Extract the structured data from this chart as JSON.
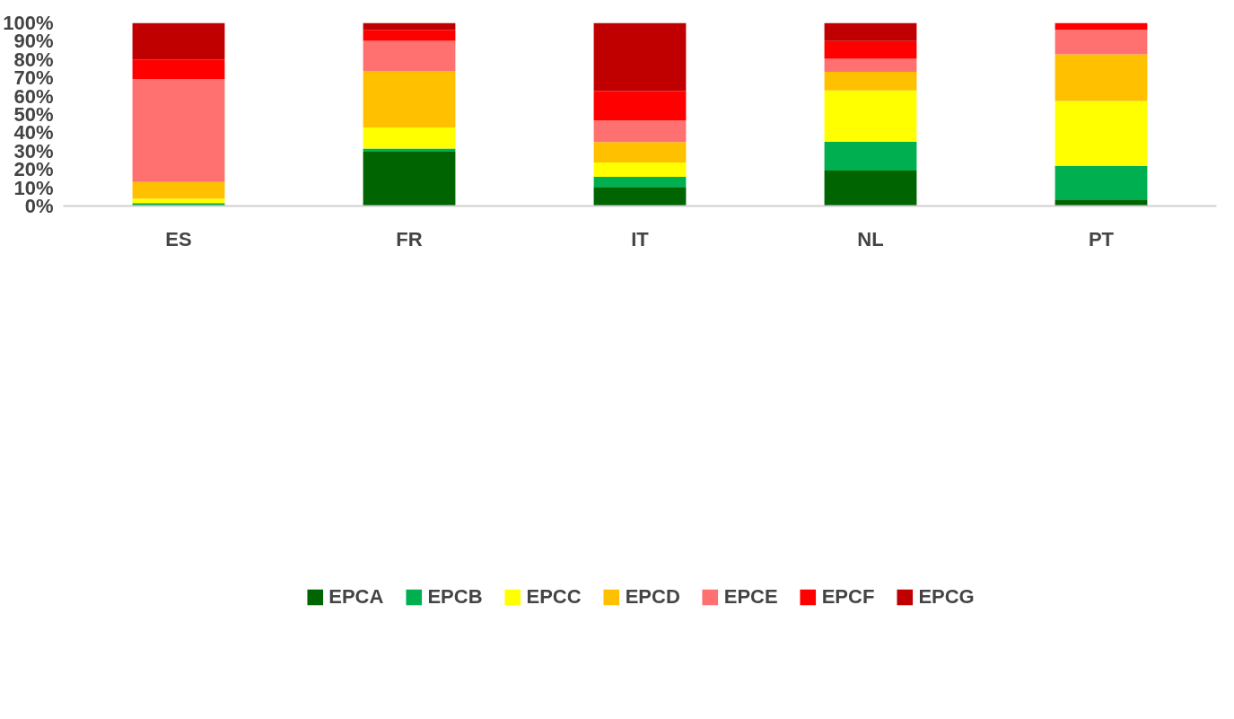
{
  "chart_data": {
    "type": "bar",
    "stacked": true,
    "categories": [
      "ES",
      "FR",
      "IT",
      "NL",
      "PT"
    ],
    "series": [
      {
        "name": "EPCA",
        "color": "#006400",
        "values": [
          0.6,
          29.7,
          10.4,
          19.4,
          3.6
        ]
      },
      {
        "name": "EPCB",
        "color": "#00b050",
        "values": [
          1.0,
          1.7,
          5.5,
          15.6,
          18.3
        ]
      },
      {
        "name": "EPCC",
        "color": "#ffff00",
        "values": [
          2.5,
          11.5,
          7.9,
          28.1,
          35.4
        ]
      },
      {
        "name": "EPCD",
        "color": "#ffc000",
        "values": [
          9.0,
          30.9,
          11.1,
          10.2,
          25.5
        ]
      },
      {
        "name": "EPCE",
        "color": "#ff7171",
        "values": [
          56.3,
          16.4,
          11.8,
          7.1,
          13.4
        ]
      },
      {
        "name": "EPCF",
        "color": "#ff0000",
        "values": [
          10.6,
          6.0,
          16.1,
          9.7,
          3.8
        ]
      },
      {
        "name": "EPCG",
        "color": "#c00000",
        "values": [
          20.0,
          3.8,
          37.2,
          9.9,
          0
        ]
      }
    ],
    "ylim": [
      0,
      100
    ],
    "yticks": [
      {
        "value": 0,
        "label": "0%"
      },
      {
        "value": 10,
        "label": "10%"
      },
      {
        "value": 20,
        "label": "20%"
      },
      {
        "value": 30,
        "label": "30%"
      },
      {
        "value": 40,
        "label": "40%"
      },
      {
        "value": 50,
        "label": "50%"
      },
      {
        "value": 60,
        "label": "60%"
      },
      {
        "value": 70,
        "label": "70%"
      },
      {
        "value": 80,
        "label": "80%"
      },
      {
        "value": 90,
        "label": "90%"
      },
      {
        "value": 100,
        "label": "100%"
      }
    ],
    "grid": false,
    "legend": "bottom"
  }
}
